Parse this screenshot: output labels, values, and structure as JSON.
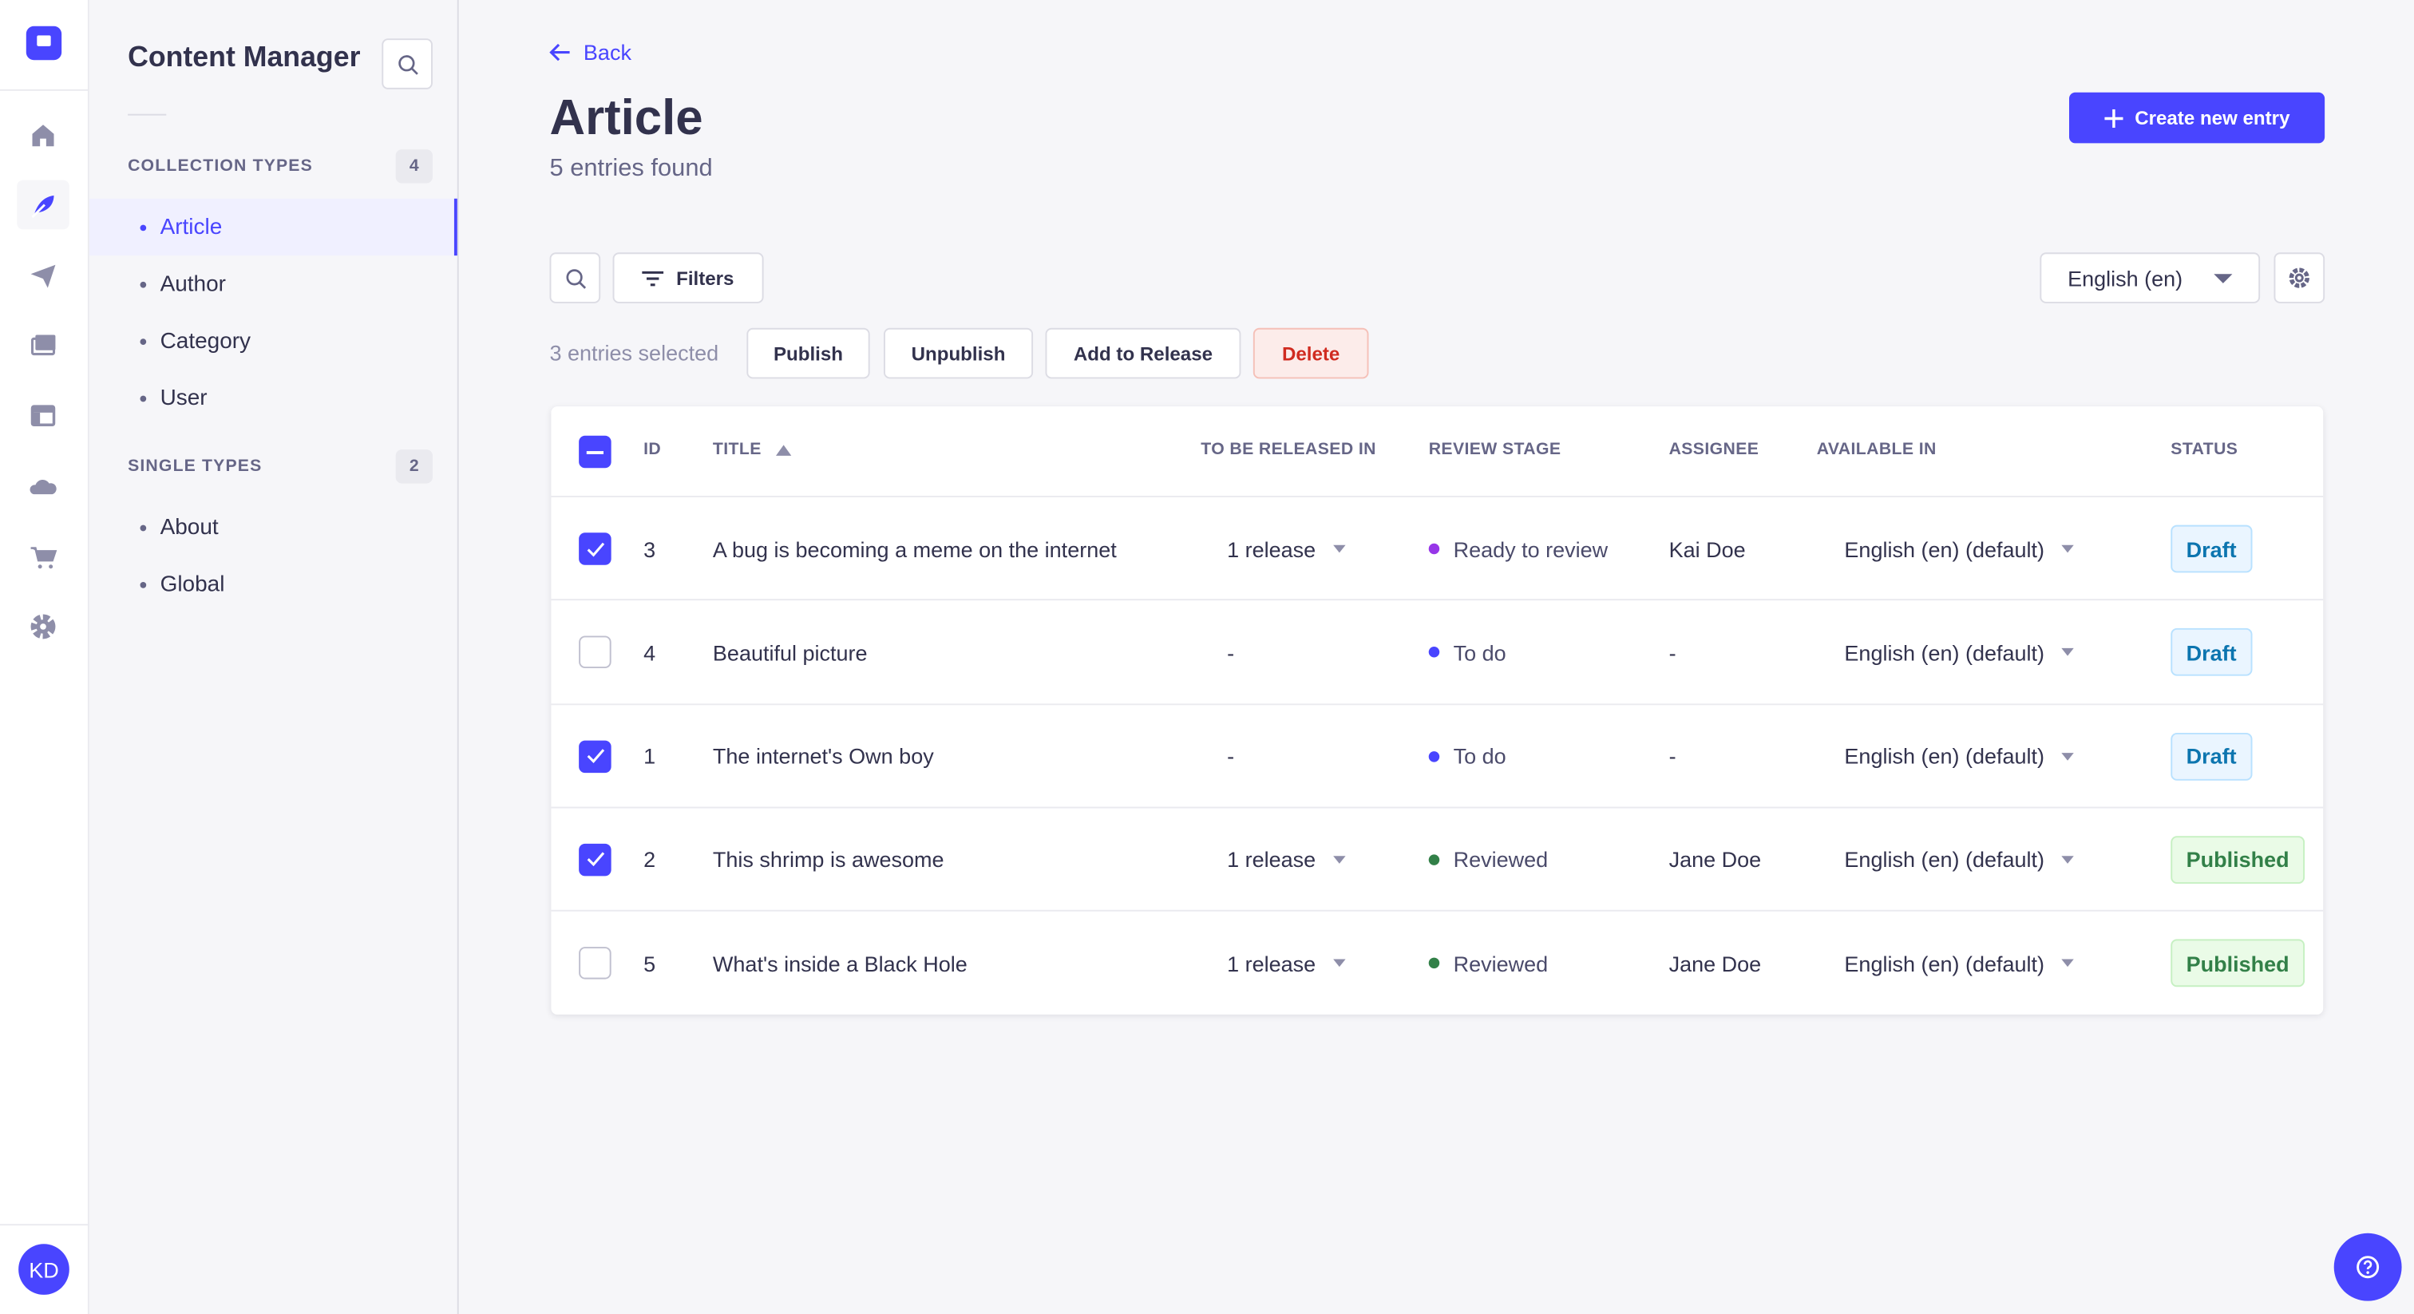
{
  "nav": {
    "logo": "strapi-logo",
    "icons": [
      "home-icon",
      "content-manager-icon",
      "releases-icon",
      "media-library-icon",
      "content-type-builder-icon",
      "cloud-icon",
      "marketplace-icon",
      "settings-icon"
    ],
    "avatar": "KD"
  },
  "sidebar": {
    "title": "Content Manager",
    "collection_header": "COLLECTION TYPES",
    "collection_count": "4",
    "collection_items": [
      "Article",
      "Author",
      "Category",
      "User"
    ],
    "single_header": "SINGLE TYPES",
    "single_count": "2",
    "single_items": [
      "About",
      "Global"
    ]
  },
  "header": {
    "back": "Back",
    "title": "Article",
    "subtitle": "5 entries found",
    "create": "Create new entry"
  },
  "toolbar": {
    "filters": "Filters",
    "locale": "English (en)"
  },
  "bulk": {
    "selected": "3 entries selected",
    "publish": "Publish",
    "unpublish": "Unpublish",
    "add_release": "Add to Release",
    "delete": "Delete"
  },
  "table": {
    "columns": [
      "ID",
      "TITLE",
      "TO BE RELEASED IN",
      "REVIEW STAGE",
      "ASSIGNEE",
      "AVAILABLE IN",
      "STATUS"
    ],
    "sort": "ascending",
    "rows": [
      {
        "checked": true,
        "id": "3",
        "title": "A bug is becoming a meme on the internet",
        "release": "1 release",
        "stage": "Ready to review",
        "stage_color": "#9736e8",
        "assignee": "Kai Doe",
        "available": "English (en) (default)",
        "status": "Draft"
      },
      {
        "checked": false,
        "id": "4",
        "title": "Beautiful picture",
        "release": "-",
        "stage": "To do",
        "stage_color": "#4945ff",
        "assignee": "-",
        "available": "English (en) (default)",
        "status": "Draft"
      },
      {
        "checked": true,
        "id": "1",
        "title": "The internet's Own boy",
        "release": "-",
        "stage": "To do",
        "stage_color": "#4945ff",
        "assignee": "-",
        "available": "English (en) (default)",
        "status": "Draft"
      },
      {
        "checked": true,
        "id": "2",
        "title": "This shrimp is awesome",
        "release": "1 release",
        "stage": "Reviewed",
        "stage_color": "#328048",
        "assignee": "Jane Doe",
        "available": "English (en) (default)",
        "status": "Published"
      },
      {
        "checked": false,
        "id": "5",
        "title": "What's inside a Black Hole",
        "release": "1 release",
        "stage": "Reviewed",
        "stage_color": "#328048",
        "assignee": "Jane Doe",
        "available": "English (en) (default)",
        "status": "Published"
      }
    ]
  },
  "colors": {
    "primary": "#4945ff",
    "danger": "#d02b20",
    "draft": "#0c75af",
    "published": "#328048"
  }
}
